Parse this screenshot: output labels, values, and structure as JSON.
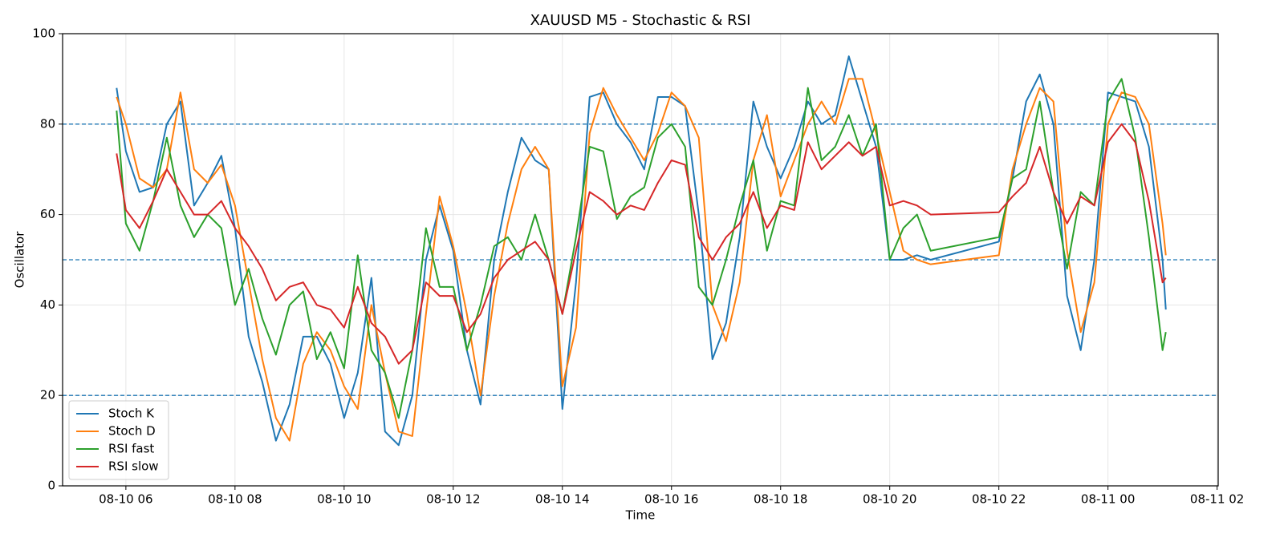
{
  "chart_data": {
    "type": "line",
    "title": "XAUUSD M5 - Stochastic & RSI",
    "x_label": "Time",
    "y_label": "Oscillator",
    "x": [
      5.83,
      6.0,
      6.25,
      6.5,
      6.75,
      7.0,
      7.25,
      7.5,
      7.75,
      8.0,
      8.25,
      8.5,
      8.75,
      9.0,
      9.25,
      9.5,
      9.75,
      10.0,
      10.25,
      10.5,
      10.75,
      11.0,
      11.25,
      11.5,
      11.75,
      12.0,
      12.25,
      12.5,
      12.75,
      13.0,
      13.25,
      13.5,
      13.75,
      14.0,
      14.25,
      14.5,
      14.75,
      15.0,
      15.25,
      15.5,
      15.75,
      16.0,
      16.25,
      16.5,
      16.75,
      17.0,
      17.25,
      17.5,
      17.75,
      18.0,
      18.25,
      18.5,
      18.75,
      19.0,
      19.25,
      19.5,
      19.75,
      20.0,
      20.25,
      20.5,
      20.75,
      22.0,
      22.25,
      22.5,
      22.75,
      23.0,
      23.25,
      23.5,
      23.75,
      24.0,
      24.25,
      24.5,
      24.75,
      25.0,
      25.06
    ],
    "series": [
      {
        "name": "Stoch K",
        "color": "#1f77b4",
        "values": [
          88,
          74,
          65,
          66,
          80,
          85,
          62,
          67,
          73,
          57,
          33,
          23,
          10,
          18,
          33,
          33,
          27,
          15,
          25,
          46,
          12,
          9,
          20,
          50,
          62,
          52,
          30,
          18,
          50,
          65,
          77,
          72,
          70,
          17,
          45,
          86,
          87,
          80,
          76,
          70,
          86,
          86,
          84,
          60,
          28,
          36,
          55,
          85,
          75,
          68,
          75,
          85,
          80,
          82,
          95,
          85,
          75,
          50,
          50,
          51,
          50,
          54,
          68,
          85,
          91,
          80,
          42,
          30,
          50,
          87,
          86,
          85,
          75,
          50,
          39
        ]
      },
      {
        "name": "Stoch D",
        "color": "#ff7f0e",
        "values": [
          86,
          80,
          68,
          66,
          70,
          87,
          70,
          67,
          71,
          62,
          45,
          28,
          15,
          10,
          27,
          34,
          30,
          22,
          17,
          40,
          25,
          12,
          11,
          38,
          64,
          53,
          38,
          20,
          42,
          58,
          70,
          75,
          70,
          22,
          35,
          78,
          88,
          82,
          77,
          72,
          78,
          87,
          84,
          77,
          40,
          32,
          45,
          72,
          82,
          64,
          72,
          80,
          85,
          80,
          90,
          90,
          78,
          65,
          52,
          50,
          49,
          51,
          70,
          80,
          88,
          85,
          52,
          34,
          45,
          80,
          87,
          86,
          80,
          58,
          51
        ]
      },
      {
        "name": "RSI fast",
        "color": "#2ca02c",
        "values": [
          83,
          58,
          52,
          63,
          77,
          62,
          55,
          60,
          57,
          40,
          48,
          37,
          29,
          40,
          43,
          28,
          34,
          26,
          51,
          30,
          25,
          15,
          30,
          57,
          44,
          44,
          30,
          40,
          53,
          55,
          50,
          60,
          50,
          38,
          55,
          75,
          74,
          59,
          64,
          66,
          77,
          80,
          75,
          44,
          40,
          50,
          62,
          72,
          52,
          63,
          62,
          88,
          72,
          75,
          82,
          73,
          80,
          50,
          57,
          60,
          52,
          55,
          68,
          70,
          85,
          65,
          48,
          65,
          62,
          85,
          90,
          77,
          55,
          30,
          34
        ]
      },
      {
        "name": "RSI slow",
        "color": "#d62728",
        "values": [
          73.5,
          61,
          57,
          63,
          70,
          65,
          60,
          60,
          63,
          57,
          53,
          48,
          41,
          44,
          45,
          40,
          39,
          35,
          44,
          36,
          33,
          27,
          30,
          45,
          42,
          42,
          34,
          38,
          46,
          50,
          52,
          54,
          50,
          38,
          52,
          65,
          63,
          60,
          62,
          61,
          67,
          72,
          71,
          55,
          50,
          55,
          58,
          65,
          57,
          62,
          61,
          76,
          70,
          73,
          76,
          73,
          75,
          62,
          63,
          62,
          60,
          60.5,
          64,
          67,
          75,
          65,
          58,
          64,
          62,
          76,
          80,
          76,
          63,
          45,
          46
        ]
      }
    ],
    "xlim": [
      4.84,
      26.02
    ],
    "xticks": [
      {
        "value": 6,
        "label": "08-10 06"
      },
      {
        "value": 8,
        "label": "08-10 08"
      },
      {
        "value": 10,
        "label": "08-10 10"
      },
      {
        "value": 12,
        "label": "08-10 12"
      },
      {
        "value": 14,
        "label": "08-10 14"
      },
      {
        "value": 16,
        "label": "08-10 16"
      },
      {
        "value": 18,
        "label": "08-10 18"
      },
      {
        "value": 20,
        "label": "08-10 20"
      },
      {
        "value": 22,
        "label": "08-10 22"
      },
      {
        "value": 24,
        "label": "08-11 00"
      },
      {
        "value": 26,
        "label": "08-11 02"
      }
    ],
    "ylim": [
      0,
      100
    ],
    "yticks": [
      0,
      20,
      40,
      60,
      80,
      100
    ],
    "hlines": [
      20,
      50,
      80
    ],
    "hline_color": "#1f77b4",
    "grid": true,
    "legend": "lower-left"
  }
}
